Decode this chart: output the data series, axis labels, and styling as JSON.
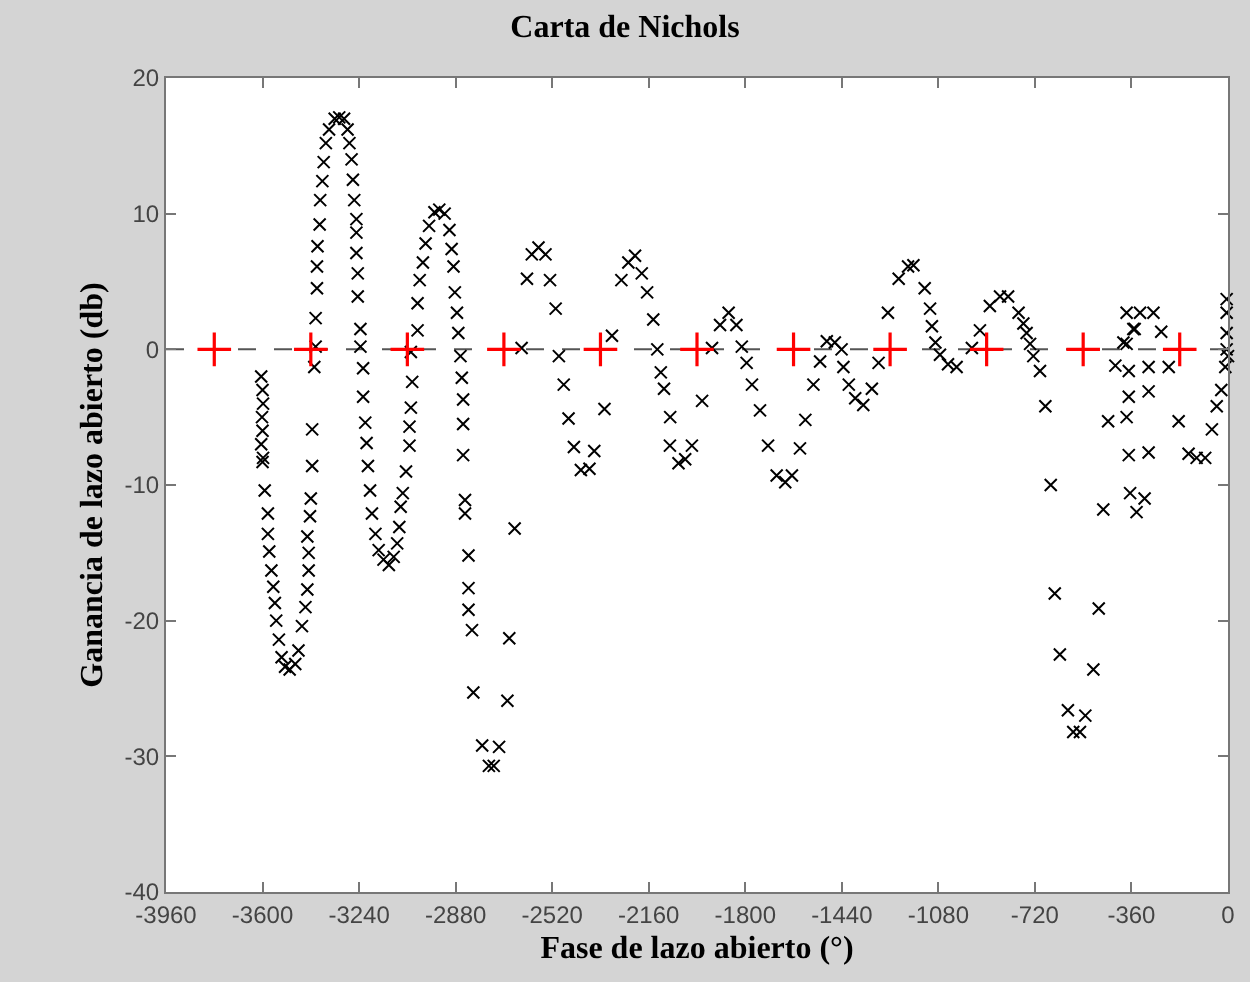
{
  "chart_data": {
    "type": "scatter",
    "title": "Carta de Nichols",
    "xlabel": "Fase de lazo abierto (°)",
    "ylabel": "Ganancia de lazo abierto (db)",
    "xlim": [
      -3960,
      0
    ],
    "xticks": [
      -3960,
      -3600,
      -3240,
      -2880,
      -2520,
      -2160,
      -1800,
      -1440,
      -1080,
      -720,
      -360,
      0
    ],
    "ylim": [
      -40,
      20
    ],
    "yticks": [
      -40,
      -30,
      -20,
      -10,
      0,
      10,
      20
    ],
    "grid": false,
    "ref_lines": [
      {
        "axis": "y",
        "value": 0,
        "color": "#555555",
        "line_style": "dashed"
      }
    ],
    "series": [
      {
        "color": "#000000",
        "marker": "x",
        "x": [
          -3605,
          -3600,
          -3598,
          -3602,
          -3600,
          -3605,
          -3598,
          -3600,
          -3592,
          -3580,
          -3580,
          -3575,
          -3567,
          -3560,
          -3554,
          -3549,
          -3539,
          -3529,
          -3516,
          -3499,
          -3478,
          -3466,
          -3453,
          -3440,
          -3433,
          -3428,
          -3428,
          -3433,
          -3423,
          -3420,
          -3415,
          -3415,
          -3407,
          -3402,
          -3402,
          -3397,
          -3397,
          -3395,
          -3387,
          -3385,
          -3377,
          -3372,
          -3364,
          -3352,
          -3331,
          -3314,
          -3296,
          -3283,
          -3276,
          -3268,
          -3263,
          -3258,
          -3250,
          -3250,
          -3250,
          -3245,
          -3245,
          -3235,
          -3235,
          -3225,
          -3225,
          -3217,
          -3212,
          -3207,
          -3199,
          -3192,
          -3179,
          -3167,
          -3149,
          -3129,
          -3111,
          -3098,
          -3090,
          -3085,
          -3077,
          -3065,
          -3052,
          -3052,
          -3047,
          -3042,
          -3047,
          -3022,
          -3022,
          -3014,
          -3002,
          -2992,
          -2979,
          -2959,
          -2941,
          -2921,
          -2903,
          -2895,
          -2888,
          -2883,
          -2875,
          -2870,
          -2862,
          -2857,
          -2852,
          -2852,
          -2852,
          -2845,
          -2845,
          -2832,
          -2832,
          -2832,
          -2819,
          -2814,
          -2781,
          -2756,
          -2738,
          -2718,
          -2687,
          -2680,
          -2660,
          -2634,
          -2614,
          -2596,
          -2571,
          -2545,
          -2528,
          -2507,
          -2495,
          -2477,
          -2459,
          -2439,
          -2413,
          -2381,
          -2363,
          -2325,
          -2297,
          -2262,
          -2236,
          -2211,
          -2186,
          -2166,
          -2143,
          -2128,
          -2115,
          -2103,
          -2080,
          -2081,
          -2049,
          -2024,
          -1999,
          -1961,
          -1924,
          -1894,
          -1862,
          -1833,
          -1813,
          -1795,
          -1775,
          -1745,
          -1715,
          -1683,
          -1651,
          -1626,
          -1596,
          -1576,
          -1546,
          -1521,
          -1496,
          -1466,
          -1441,
          -1434,
          -1414,
          -1390,
          -1360,
          -1328,
          -1303,
          -1268,
          -1228,
          -1193,
          -1173,
          -1131,
          -1111,
          -1104,
          -1091,
          -1074,
          -1044,
          -1012,
          -955,
          -925,
          -888,
          -850,
          -820,
          -781,
          -763,
          -751,
          -738,
          -726,
          -701,
          -681,
          -661,
          -646,
          -627,
          -597,
          -577,
          -552,
          -532,
          -502,
          -482,
          -465,
          -447,
          -420,
          -390,
          -378,
          -353,
          -328,
          -278,
          -249,
          -296,
          -370,
          -370,
          -378,
          -370,
          -365,
          -341,
          -311,
          -296,
          -296,
          -378,
          -348,
          -221,
          -184,
          -147,
          -117,
          -85,
          -60,
          -42,
          -25,
          -10,
          -5,
          -5,
          -5,
          -5,
          0
        ],
        "values": [
          -2,
          -3,
          -4,
          -5,
          -6,
          -7,
          -8,
          -8.3,
          -10.4,
          -12.1,
          -13.6,
          -14.9,
          -16.3,
          -17.5,
          -18.7,
          -20,
          -21.4,
          -22.7,
          -23.4,
          -23.6,
          -23.2,
          -22.2,
          -20.4,
          -19,
          -17.7,
          -16.3,
          -15,
          -13.8,
          -12.3,
          -11,
          -8.6,
          -5.9,
          -1.3,
          0.2,
          2.3,
          4.5,
          6.1,
          7.6,
          9.2,
          11,
          12.4,
          13.8,
          15.2,
          16.2,
          17,
          17.1,
          17,
          16.2,
          15.2,
          14,
          12.5,
          11,
          9.6,
          8.6,
          7.1,
          5.6,
          3.9,
          1.5,
          0.2,
          -1.4,
          -3.5,
          -5.4,
          -6.9,
          -8.6,
          -10.4,
          -12.1,
          -13.6,
          -14.8,
          -15.5,
          -15.9,
          -15.3,
          -14.3,
          -13.1,
          -11.6,
          -10.6,
          -9,
          -7.1,
          -5.7,
          -4.3,
          -2.4,
          -0.2,
          1.4,
          3.4,
          5.1,
          6.4,
          7.8,
          9.1,
          10.1,
          10.3,
          10,
          8.8,
          7.4,
          6.1,
          4.2,
          2.7,
          1.2,
          -0.5,
          -2.1,
          -3.7,
          -5.5,
          -7.8,
          -11.1,
          -12.1,
          -15.2,
          -17.6,
          -19.2,
          -20.7,
          -25.3,
          -29.2,
          -30.7,
          -30.7,
          -29.3,
          -25.9,
          -21.3,
          -13.2,
          0.1,
          5.2,
          7,
          7.5,
          7,
          5.1,
          3,
          -0.5,
          -2.6,
          -5.1,
          -7.2,
          -8.9,
          -8.8,
          -7.5,
          -4.4,
          1,
          5.1,
          6.4,
          6.9,
          5.6,
          4.2,
          2.2,
          0,
          -1.7,
          -2.9,
          -5,
          -7.1,
          -8.4,
          -8.1,
          -7.1,
          -3.8,
          0.1,
          1.8,
          2.7,
          1.8,
          0.2,
          -1,
          -2.6,
          -4.5,
          -7.1,
          -9.3,
          -9.8,
          -9.3,
          -7.3,
          -5.2,
          -2.6,
          -0.9,
          0.6,
          0.5,
          0,
          -1.3,
          -2.6,
          -3.6,
          -4.1,
          -2.9,
          -1,
          2.7,
          5.2,
          6.1,
          6.2,
          4.5,
          3,
          1.7,
          0.5,
          -0.4,
          -1.1,
          -1.3,
          0.1,
          1.4,
          3.2,
          3.9,
          3.9,
          2.7,
          1.9,
          1.2,
          0.4,
          -0.5,
          -1.6,
          -4.2,
          -10,
          -18,
          -22.5,
          -26.6,
          -28.2,
          -28.2,
          -27,
          -23.6,
          -19.1,
          -11.8,
          -5.3,
          -1.2,
          0.5,
          2.7,
          1.5,
          2.7,
          2.7,
          1.3,
          -1.3,
          -1.6,
          -3.5,
          -5,
          -7.8,
          -10.6,
          -12,
          -11,
          -7.6,
          -3.1,
          0.4,
          1.5,
          -1.3,
          -5.3,
          -7.7,
          -8,
          -8,
          -5.9,
          -4.2,
          -3,
          -1.3,
          0,
          1.2,
          2.7,
          3.7,
          -0.5
        ]
      },
      {
        "color": "#ff0000",
        "marker": "cross",
        "x": [
          -3780,
          -3420,
          -3060,
          -2700,
          -2340,
          -1980,
          -1620,
          -1260,
          -900,
          -540,
          -180
        ],
        "values": [
          0,
          0,
          0,
          0,
          0,
          0,
          0,
          0,
          0,
          0,
          0
        ]
      }
    ]
  }
}
